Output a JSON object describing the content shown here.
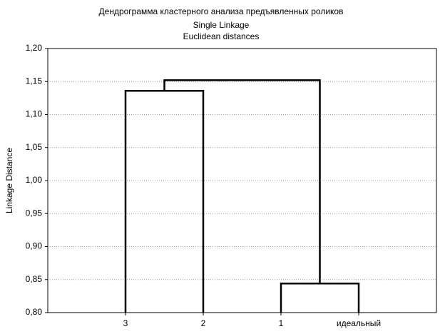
{
  "chart_data": {
    "type": "dendrogram",
    "title": "Дендрограмма кластерного анализа предъявленных роликов",
    "subtitle": [
      "Single Linkage",
      "Euclidean distances"
    ],
    "y_label": "Linkage Distance",
    "categories": [
      "3",
      "2",
      "1",
      "идеальный"
    ],
    "merges": [
      {
        "a": 2,
        "b": 3,
        "height": 0.844
      },
      {
        "a": 0,
        "b": 1,
        "height": 1.136
      },
      {
        "a": 5,
        "b": 4,
        "height": 1.152
      }
    ],
    "ylim": [
      0.8,
      1.2
    ],
    "yticks": [
      {
        "value": 0.8,
        "label": "0,80"
      },
      {
        "value": 0.85,
        "label": "0,85"
      },
      {
        "value": 0.9,
        "label": "0,90"
      },
      {
        "value": 0.95,
        "label": "0,95"
      },
      {
        "value": 1.0,
        "label": "1,00"
      },
      {
        "value": 1.05,
        "label": "1,05"
      },
      {
        "value": 1.1,
        "label": "1,10"
      },
      {
        "value": 1.15,
        "label": "1,15"
      },
      {
        "value": 1.2,
        "label": "1,20"
      }
    ],
    "grid": true,
    "color": "#000000"
  }
}
